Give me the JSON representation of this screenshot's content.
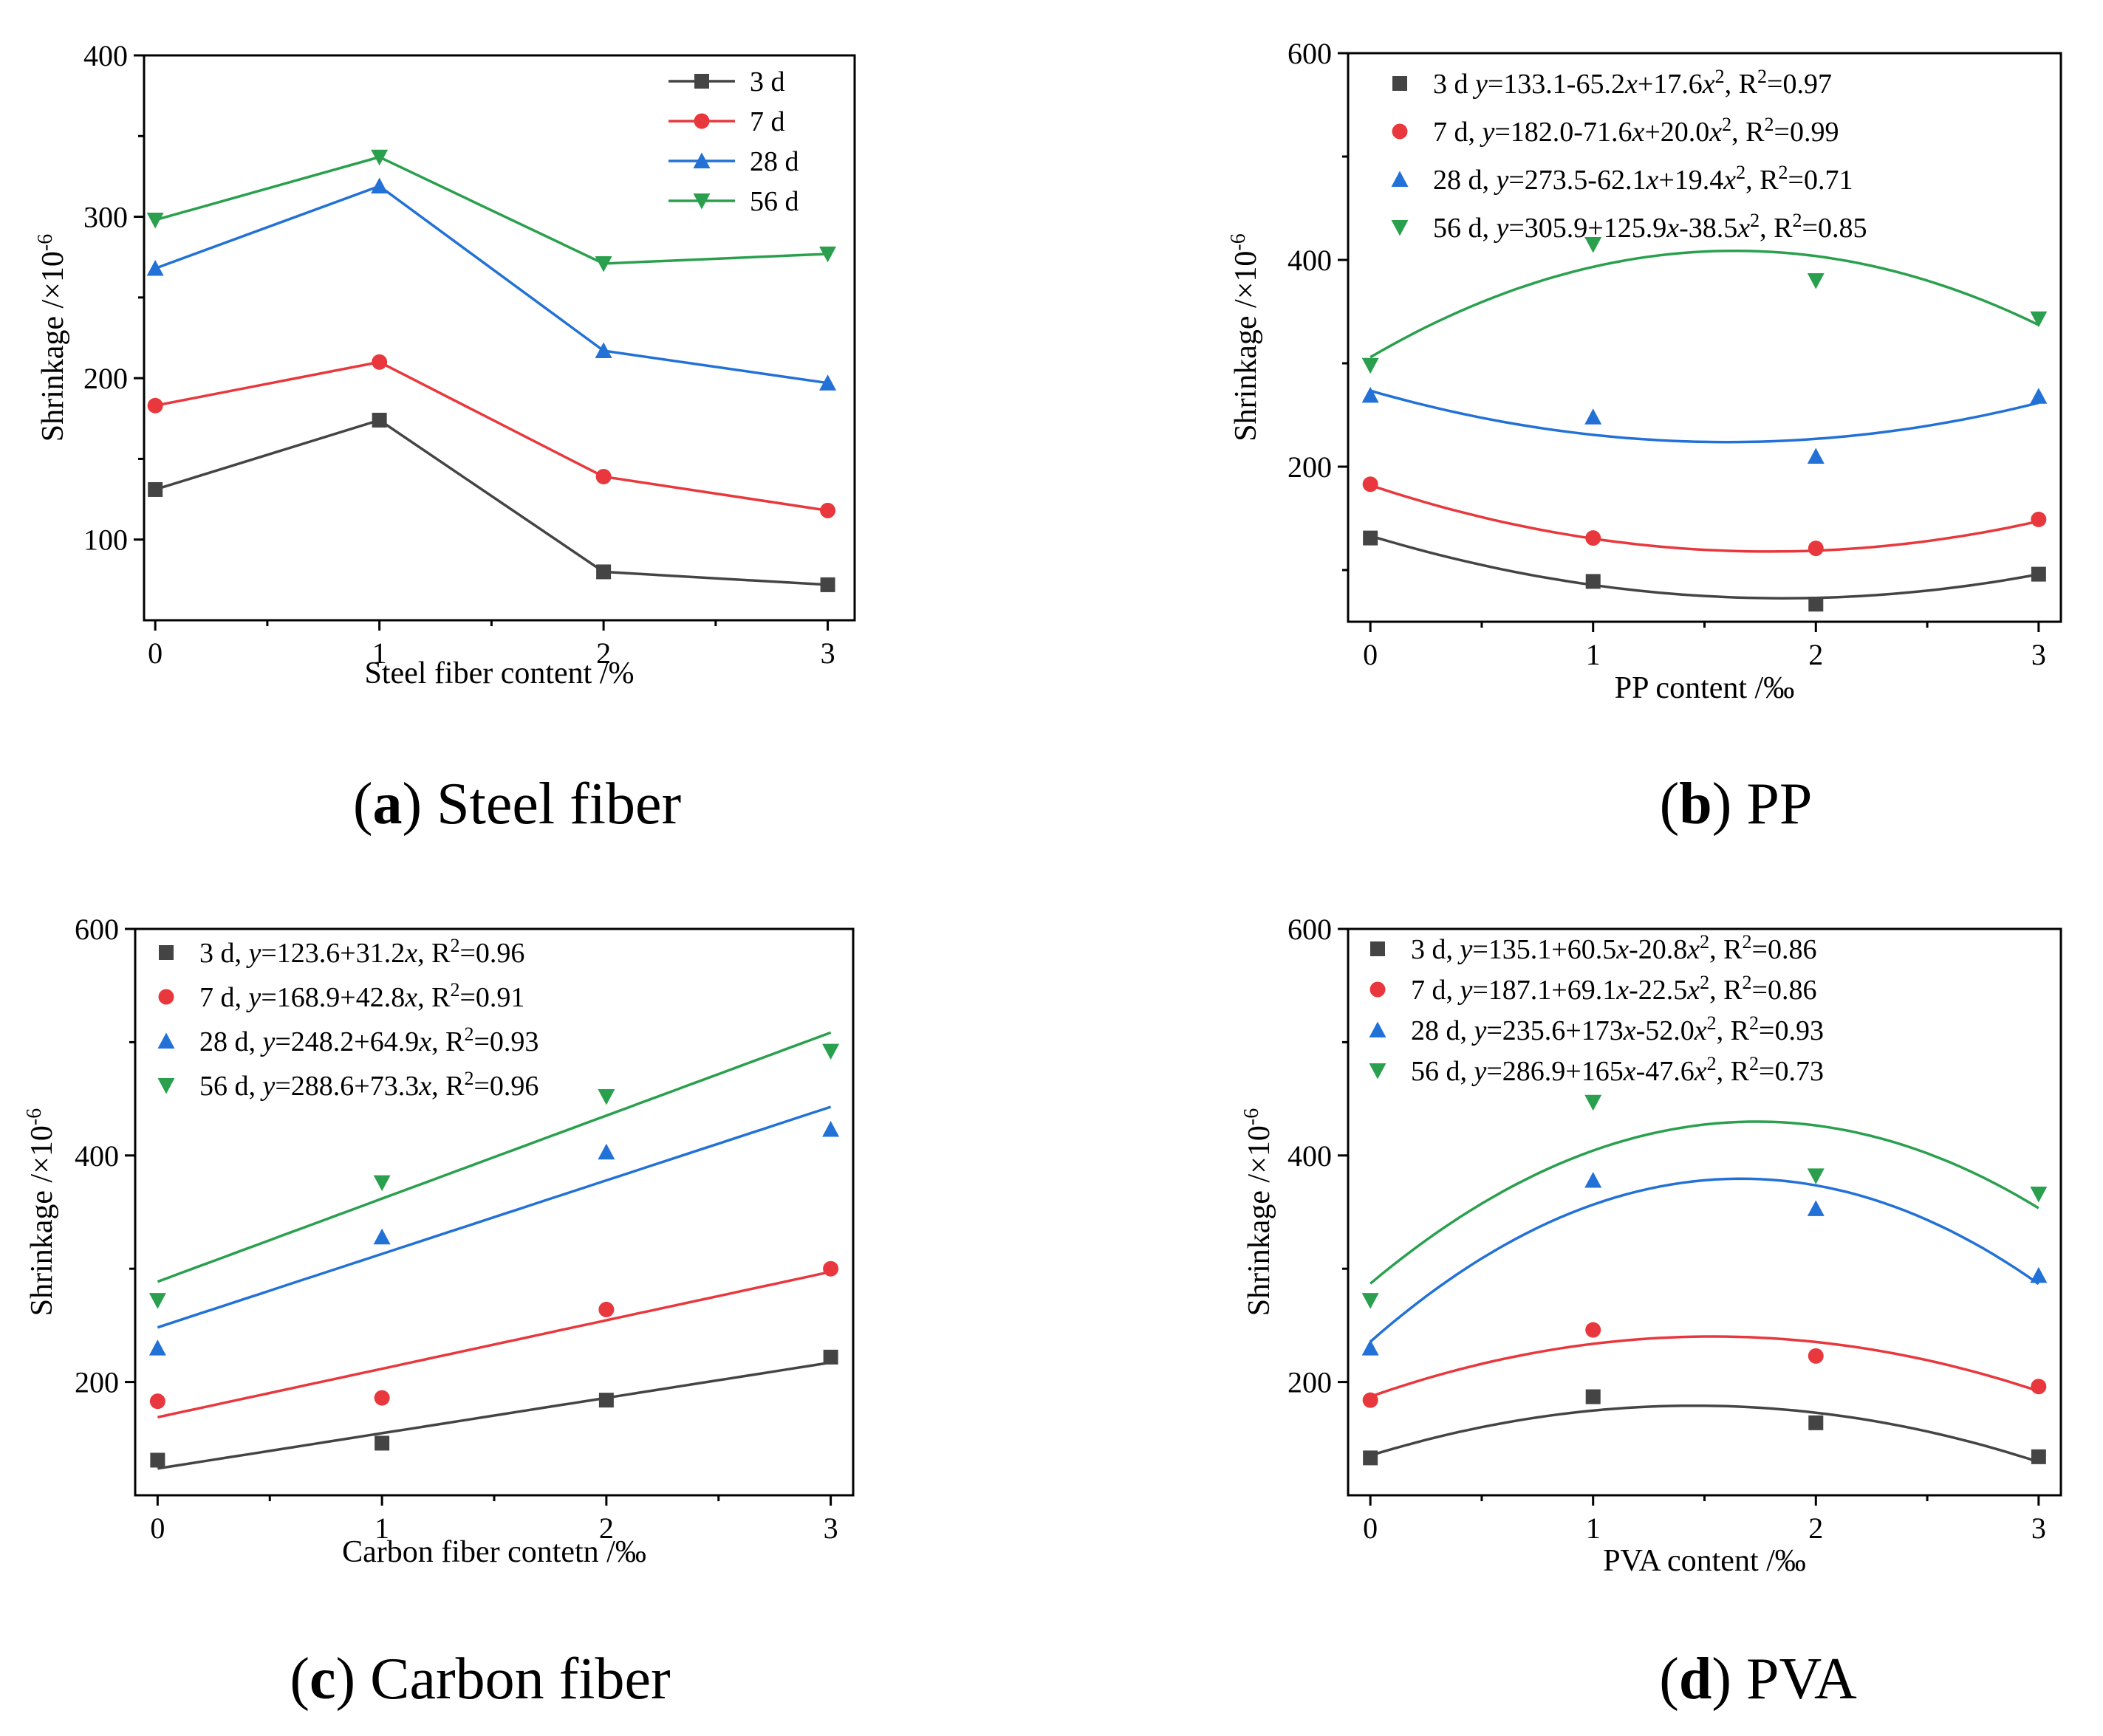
{
  "figure": {
    "panels_order": [
      "a",
      "b",
      "c",
      "d"
    ]
  },
  "series_colors": {
    "3 d": "#444444",
    "7 d": "#e8383d",
    "28 d": "#2271d6",
    "56 d": "#2aa04e"
  },
  "series_markers": {
    "3 d": "square",
    "7 d": "circle",
    "28 d": "triangle-up",
    "56 d": "triangle-down"
  },
  "chart_data": [
    {
      "id": "a",
      "type": "line",
      "caption_letter": "a",
      "caption_text": "Steel fiber",
      "xlabel": "Steel fiber content /%",
      "ylabel": "Shrinkage /×10",
      "ylabel_exp": "-6",
      "x": [
        0,
        1,
        2,
        3
      ],
      "xlim": [
        -0.05,
        3.12
      ],
      "ylim": [
        50,
        400
      ],
      "yticks": [
        100,
        200,
        300,
        400
      ],
      "xticks": [
        0,
        1,
        2,
        3
      ],
      "legend_position": "top-right",
      "series": [
        {
          "name": "3 d",
          "legend": "3 d",
          "values": [
            131,
            174,
            80,
            72
          ]
        },
        {
          "name": "7 d",
          "legend": "7 d",
          "values": [
            183,
            210,
            139,
            118
          ]
        },
        {
          "name": "28 d",
          "legend": "28 d",
          "values": [
            268,
            319,
            217,
            197
          ]
        },
        {
          "name": "56 d",
          "legend": "56 d",
          "values": [
            298,
            337,
            271,
            277
          ]
        }
      ]
    },
    {
      "id": "b",
      "type": "scatter",
      "caption_letter": "b",
      "caption_text": "PP",
      "xlabel": "PP content /‰",
      "ylabel": "Shrinkage /×10",
      "ylabel_exp": "-6",
      "x": [
        0,
        1,
        2,
        3
      ],
      "xlim": [
        -0.1,
        3.1
      ],
      "ylim": [
        50,
        600
      ],
      "yticks": [
        200,
        400,
        600
      ],
      "xticks": [
        0,
        1,
        2,
        3
      ],
      "legend_position": "top-left",
      "series": [
        {
          "name": "3 d",
          "legend": "3 d  y=133.1-65.2x+17.6x², R²=0.97",
          "values": [
            131,
            89,
            67,
            96
          ],
          "fit": [
            133.1,
            -65.2,
            17.6
          ]
        },
        {
          "name": "7 d",
          "legend": "7 d,  y=182.0-71.6x+20.0x², R²=0.99",
          "values": [
            183,
            131,
            121,
            149
          ],
          "fit": [
            182.0,
            -71.6,
            20.0
          ]
        },
        {
          "name": "28 d",
          "legend": "28 d, y=273.5-62.1x+19.4x², R²=0.71",
          "values": [
            269,
            248,
            210,
            268
          ],
          "fit": [
            273.5,
            -62.1,
            19.4
          ]
        },
        {
          "name": "56 d",
          "legend": "56 d, y=305.9+125.9x-38.5x², R²=0.85",
          "values": [
            298,
            415,
            380,
            343
          ],
          "fit": [
            305.9,
            125.9,
            -38.5
          ]
        }
      ]
    },
    {
      "id": "c",
      "type": "scatter",
      "caption_letter": "c",
      "caption_text": "Carbon fiber",
      "xlabel": "Carbon fiber contetn /‰",
      "ylabel": "Shrinkage /×10",
      "ylabel_exp": "-6",
      "x": [
        0,
        1,
        2,
        3
      ],
      "xlim": [
        -0.1,
        3.1
      ],
      "ylim": [
        100,
        600
      ],
      "yticks": [
        200,
        400,
        600
      ],
      "xticks": [
        0,
        1,
        2,
        3
      ],
      "legend_position": "top-left",
      "series": [
        {
          "name": "3 d",
          "legend": "3 d,  y=123.6+31.2x, R²=0.96",
          "values": [
            131,
            146,
            184,
            222
          ],
          "fit": [
            123.6,
            31.2,
            0
          ]
        },
        {
          "name": "7 d",
          "legend": "7 d,  y=168.9+42.8x, R²=0.91",
          "values": [
            183,
            186,
            264,
            300
          ],
          "fit": [
            168.9,
            42.8,
            0
          ]
        },
        {
          "name": "28 d",
          "legend": "28 d, y=248.2+64.9x, R²=0.93",
          "values": [
            230,
            328,
            403,
            423
          ],
          "fit": [
            248.2,
            64.9,
            0
          ]
        },
        {
          "name": "56 d",
          "legend": "56 d, y=288.6+73.3x, R²=0.96",
          "values": [
            272,
            376,
            452,
            492
          ],
          "fit": [
            288.6,
            73.3,
            0
          ]
        }
      ]
    },
    {
      "id": "d",
      "type": "scatter",
      "caption_letter": "d",
      "caption_text": "PVA",
      "xlabel": "PVA content /‰",
      "ylabel": "Shrinkage /×10",
      "ylabel_exp": "-6",
      "x": [
        0,
        1,
        2,
        3
      ],
      "xlim": [
        -0.1,
        3.1
      ],
      "ylim": [
        100,
        600
      ],
      "yticks": [
        200,
        400,
        600
      ],
      "xticks": [
        0,
        1,
        2,
        3
      ],
      "legend_position": "top-left",
      "series": [
        {
          "name": "3 d",
          "legend": "3 d,  y=135.1+60.5x-20.8x², R²=0.86",
          "values": [
            133,
            187,
            164,
            134
          ],
          "fit": [
            135.1,
            60.5,
            -20.8
          ]
        },
        {
          "name": "7 d",
          "legend": "7 d,  y=187.1+69.1x-22.5x², R²=0.86",
          "values": [
            184,
            246,
            223,
            196
          ],
          "fit": [
            187.1,
            69.1,
            -22.5
          ]
        },
        {
          "name": "28 d",
          "legend": "28 d, y=235.6+173x-52.0x²,  R²=0.93",
          "values": [
            230,
            378,
            353,
            294
          ],
          "fit": [
            235.6,
            173,
            -52.0
          ]
        },
        {
          "name": "56 d",
          "legend": "56 d, y=286.9+165x-47.6x²,  R²=0.73",
          "values": [
            272,
            447,
            382,
            366
          ],
          "fit": [
            286.9,
            165,
            -47.6
          ]
        }
      ]
    }
  ]
}
